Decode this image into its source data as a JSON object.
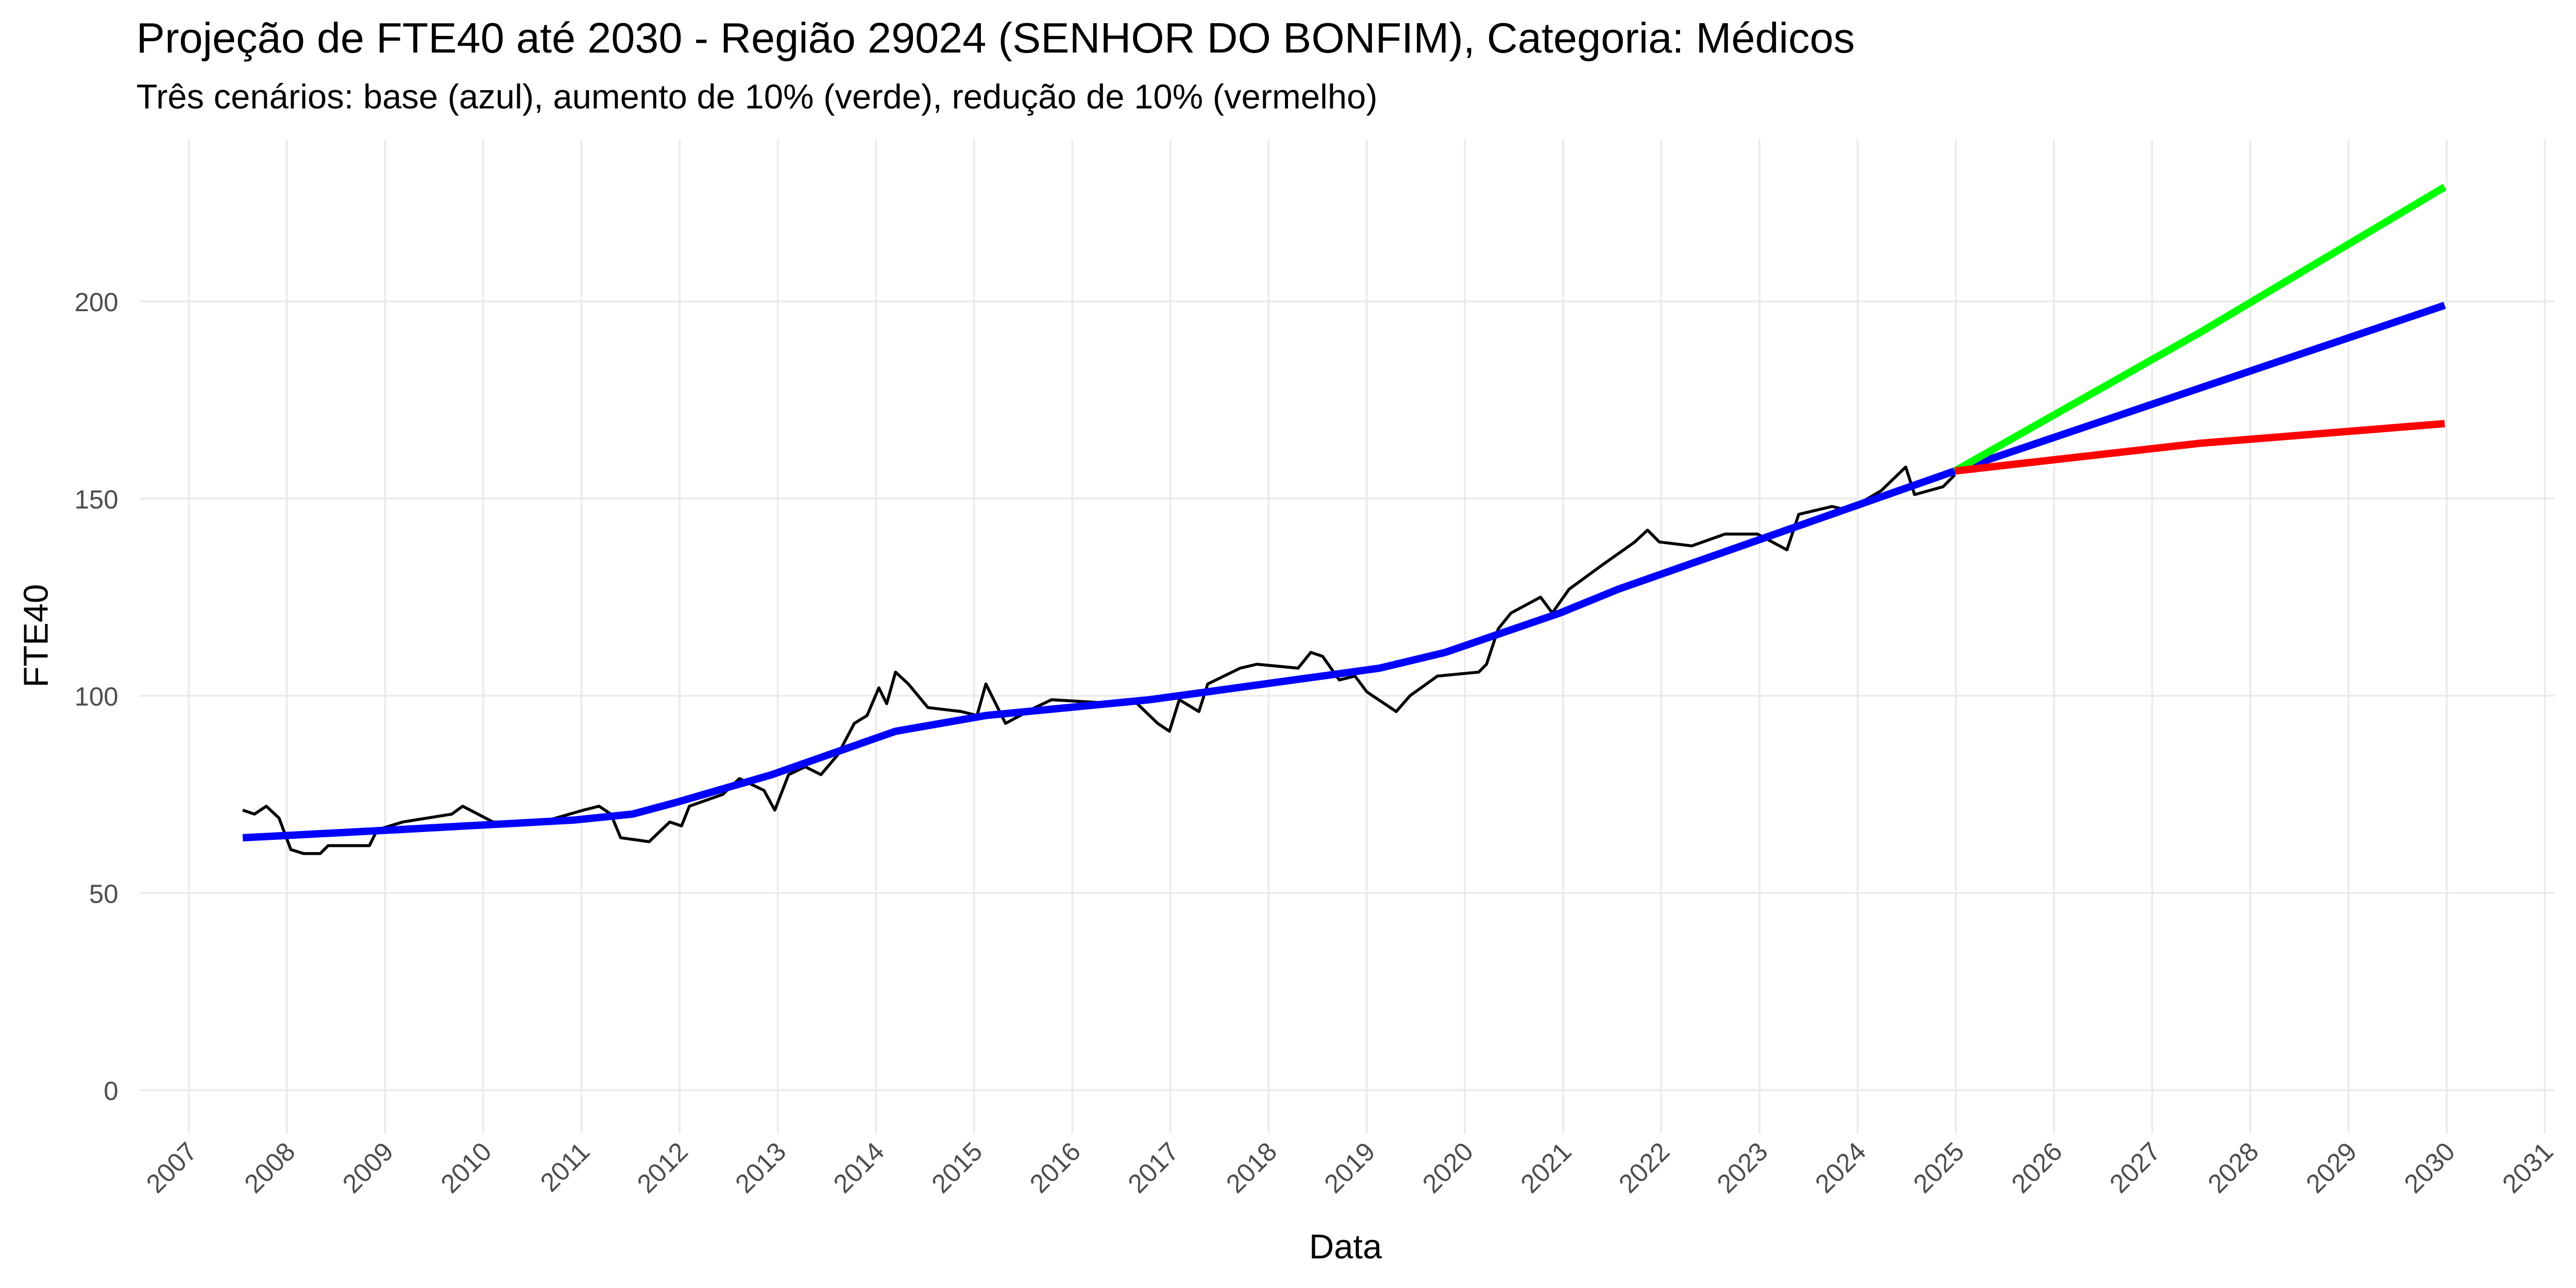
{
  "chart_data": {
    "type": "line",
    "title": "Projeção de FTE40 até 2030 - Região 29024 (SENHOR DO BONFIM), Categoria: Médicos",
    "subtitle": "Três cenários: base (azul), aumento de 10% (verde), redução de 10% (vermelho)",
    "x_label": "Data",
    "y_label": "FTE40",
    "xlim": [
      2006.5,
      2031.1
    ],
    "xticks": [
      2007,
      2008,
      2009,
      2010,
      2011,
      2012,
      2013,
      2014,
      2015,
      2016,
      2017,
      2018,
      2019,
      2020,
      2021,
      2022,
      2023,
      2024,
      2025,
      2026,
      2027,
      2028,
      2029,
      2030,
      2031
    ],
    "ylim": [
      -11,
      241
    ],
    "yticks": [
      0,
      50,
      100,
      150,
      200
    ],
    "grid": true,
    "series": [
      {
        "color": "#000000",
        "width": 1.8,
        "x": [
          2007.55,
          2007.67,
          2007.79,
          2007.92,
          2008.04,
          2008.17,
          2008.34,
          2008.42,
          2008.84,
          2008.92,
          2009.18,
          2009.43,
          2009.68,
          2009.79,
          2010.1,
          2010.6,
          2011.02,
          2011.18,
          2011.3,
          2011.4,
          2011.69,
          2011.9,
          2012.02,
          2012.1,
          2012.44,
          2012.61,
          2012.86,
          2012.97,
          2013.11,
          2013.28,
          2013.44,
          2013.61,
          2013.78,
          2013.91,
          2014.03,
          2014.11,
          2014.2,
          2014.33,
          2014.53,
          2014.87,
          2015.03,
          2015.12,
          2015.32,
          2015.62,
          2015.79,
          2016.46,
          2016.62,
          2016.87,
          2016.99,
          2017.09,
          2017.29,
          2017.38,
          2017.71,
          2017.88,
          2018.3,
          2018.43,
          2018.55,
          2018.72,
          2018.88,
          2019.0,
          2019.3,
          2019.44,
          2019.72,
          2020.14,
          2020.22,
          2020.34,
          2020.47,
          2020.77,
          2020.89,
          2021.06,
          2021.39,
          2021.73,
          2021.86,
          2021.98,
          2022.31,
          2022.65,
          2022.98,
          2023.28,
          2023.4,
          2023.74,
          2023.9,
          2024.24,
          2024.49,
          2024.58,
          2024.87,
          2024.99
        ],
        "values": [
          71,
          70,
          72,
          69,
          61,
          60,
          60,
          62,
          62,
          66,
          68,
          69,
          70,
          72,
          68,
          68,
          71,
          72,
          70,
          64,
          63,
          68,
          67,
          72,
          75,
          79,
          76,
          71,
          80,
          82,
          80,
          85,
          93,
          95,
          102,
          98,
          106,
          103,
          97,
          96,
          95,
          103,
          93,
          97,
          99,
          98,
          99,
          93,
          91,
          99,
          96,
          103,
          107,
          108,
          107,
          111,
          110,
          104,
          105,
          101,
          96,
          100,
          105,
          106,
          108,
          117,
          121,
          125,
          121,
          127,
          133,
          139,
          142,
          139,
          138,
          141,
          141,
          137,
          146,
          148,
          147,
          152,
          158,
          151,
          153,
          156
        ]
      },
      {
        "color": "#0000ff",
        "width": 4.5,
        "x": [
          2007.55,
          2009.09,
          2010.93,
          2011.52,
          2011.97,
          2012.94,
          2014.2,
          2015.12,
          2016.79,
          2019.13,
          2019.8,
          2020.97,
          2021.56,
          2024.99,
          2029.98
        ],
        "values": [
          64,
          66,
          68.5,
          70,
          73,
          80,
          91,
          95,
          99,
          107,
          111,
          121,
          127,
          157,
          199
        ]
      },
      {
        "color": "#00ff00",
        "width": 4.5,
        "x": [
          2024.99,
          2027.48,
          2029.98
        ],
        "values": [
          157,
          192,
          229
        ]
      },
      {
        "color": "#ff0000",
        "width": 4.5,
        "x": [
          2024.99,
          2027.48,
          2029.98
        ],
        "values": [
          157,
          164,
          169
        ]
      }
    ]
  }
}
